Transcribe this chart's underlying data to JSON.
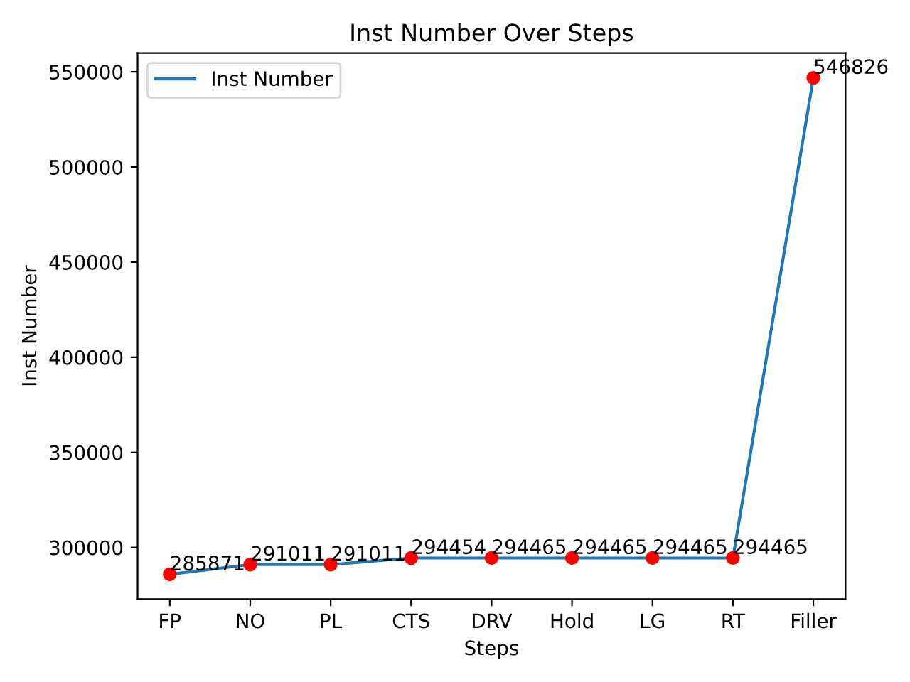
{
  "chart_data": {
    "type": "line",
    "title": "Inst Number Over Steps",
    "xlabel": "Steps",
    "ylabel": "Inst Number",
    "categories": [
      "FP",
      "NO",
      "PL",
      "CTS",
      "DRV",
      "Hold",
      "LG",
      "RT",
      "Filler"
    ],
    "series": [
      {
        "name": "Inst Number",
        "color": "#1f77b4",
        "values": [
          285871,
          291011,
          291011,
          294454,
          294465,
          294465,
          294465,
          294465,
          546826
        ]
      },
      {
        "type": "scatter",
        "color": "#ff0000",
        "values": [
          285871,
          291011,
          291011,
          294454,
          294465,
          294465,
          294465,
          294465,
          546826
        ],
        "value_labels": [
          "285871",
          "291011",
          "291011",
          "294454",
          "294465",
          "294465",
          "294465",
          "294465",
          "546826"
        ]
      }
    ],
    "ylim": [
      272823,
      559874
    ],
    "yticks": [
      300000,
      350000,
      400000,
      450000,
      500000,
      550000
    ],
    "grid": false,
    "legend": "top left"
  }
}
